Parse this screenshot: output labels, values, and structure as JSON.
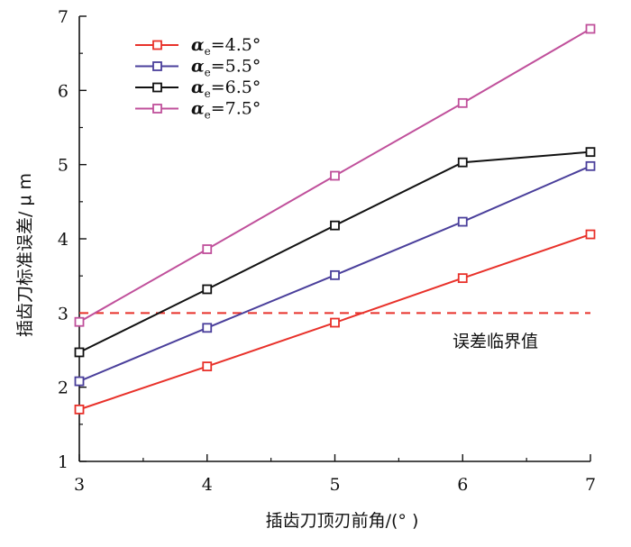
{
  "chart_data": {
    "type": "line",
    "title": "",
    "xlabel": "插齿刀顶刃前角/(° )",
    "ylabel": "插齿刀标准误差/ μ m",
    "x": [
      3,
      4,
      5,
      6,
      7
    ],
    "xlim": [
      3,
      7
    ],
    "ylim": [
      1,
      7
    ],
    "xticks": [
      "3",
      "4",
      "5",
      "6",
      "7"
    ],
    "yticks": [
      "1",
      "2",
      "3",
      "4",
      "5",
      "6",
      "7"
    ],
    "grid": false,
    "legend_position": "top-left",
    "series": [
      {
        "name": "4.5°",
        "color": "#e8312a",
        "marker": "square",
        "values": [
          1.7,
          2.28,
          2.87,
          3.47,
          4.06
        ]
      },
      {
        "name": "5.5°",
        "color": "#4a3f9b",
        "marker": "square",
        "values": [
          2.08,
          2.8,
          3.51,
          4.23,
          4.98
        ]
      },
      {
        "name": "6.5°",
        "color": "#111111",
        "marker": "square",
        "values": [
          2.47,
          3.32,
          4.18,
          5.03,
          5.17
        ]
      },
      {
        "name": "7.5°",
        "color": "#c0509b",
        "marker": "square",
        "values": [
          2.88,
          3.86,
          4.85,
          5.83,
          6.83
        ]
      }
    ],
    "legend_prefix_symbol": "α",
    "legend_prefix_subscript": "e",
    "threshold": {
      "value": 3,
      "label": "误差临界值",
      "color": "#e8312a",
      "style": "dashed"
    }
  }
}
